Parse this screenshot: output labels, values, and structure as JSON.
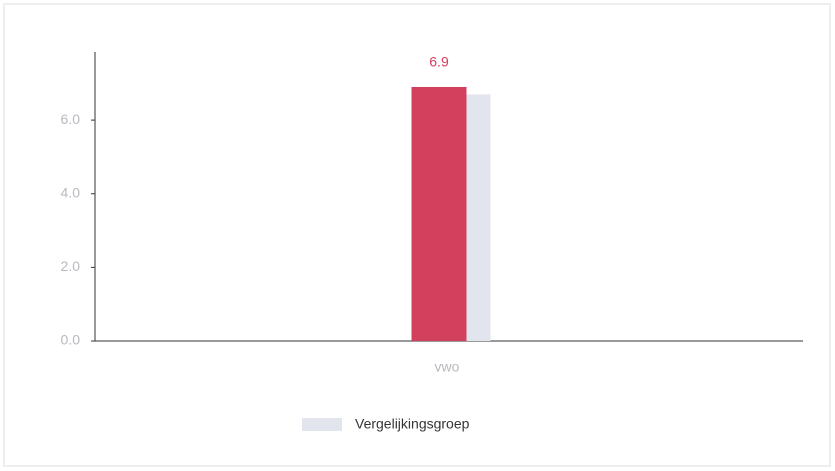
{
  "chart_data": {
    "type": "bar",
    "categories": [
      "vwo"
    ],
    "series": [
      {
        "color": "#d2405e",
        "values": [
          6.9
        ],
        "value_labels": [
          "6.9"
        ]
      },
      {
        "name": "Vergelijkingsgroep",
        "color": "#e3e5ee",
        "values": [
          6.7
        ]
      }
    ],
    "ylim": [
      0,
      7.85
    ],
    "yticks": [
      {
        "value": 0,
        "label": "0.0"
      },
      {
        "value": 2,
        "label": "2.0"
      },
      {
        "value": 4,
        "label": "4.0"
      },
      {
        "value": 6,
        "label": "6.0"
      }
    ],
    "legend": "bottom"
  }
}
